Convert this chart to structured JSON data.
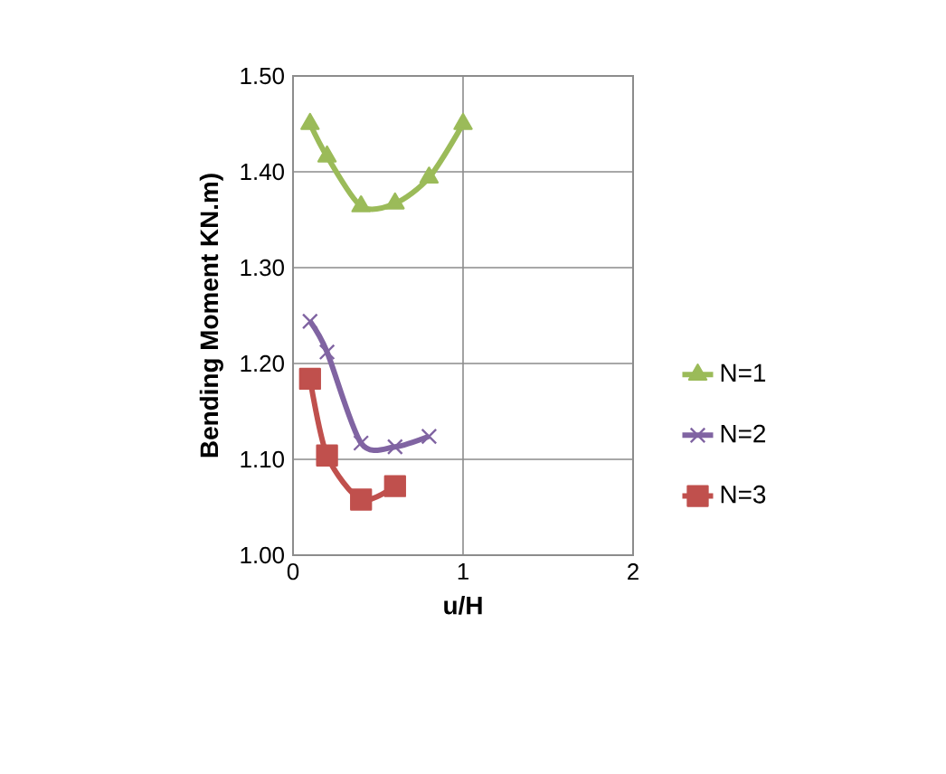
{
  "chart_data": {
    "type": "line",
    "xlabel": "u/H",
    "ylabel": "Bending Moment KN.m)",
    "xlim": [
      0,
      2
    ],
    "xticks": [
      0,
      1,
      2
    ],
    "ylim": [
      1.0,
      1.5
    ],
    "yticks": [
      {
        "value": 1.0,
        "label": "1.00"
      },
      {
        "value": 1.1,
        "label": "1.10"
      },
      {
        "value": 1.2,
        "label": "1.20"
      },
      {
        "value": 1.3,
        "label": "1.30"
      },
      {
        "value": 1.4,
        "label": "1.40"
      },
      {
        "value": 1.5,
        "label": "1.50"
      }
    ],
    "grid": true,
    "legend": "right",
    "series": [
      {
        "name": "N=1",
        "color": "#9bbb59",
        "marker": "triangle",
        "x": [
          0.1,
          0.2,
          0.4,
          0.6,
          0.8,
          1.0
        ],
        "values": [
          1.45,
          1.416,
          1.364,
          1.367,
          1.394,
          1.45
        ]
      },
      {
        "name": "N=2",
        "color": "#8064a2",
        "marker": "cross",
        "x": [
          0.1,
          0.2,
          0.4,
          0.6,
          0.8
        ],
        "values": [
          1.244,
          1.212,
          1.117,
          1.113,
          1.124
        ]
      },
      {
        "name": "N=3",
        "color": "#c0504d",
        "marker": "square",
        "x": [
          0.1,
          0.2,
          0.4,
          0.6
        ],
        "values": [
          1.184,
          1.104,
          1.058,
          1.072
        ]
      }
    ]
  }
}
